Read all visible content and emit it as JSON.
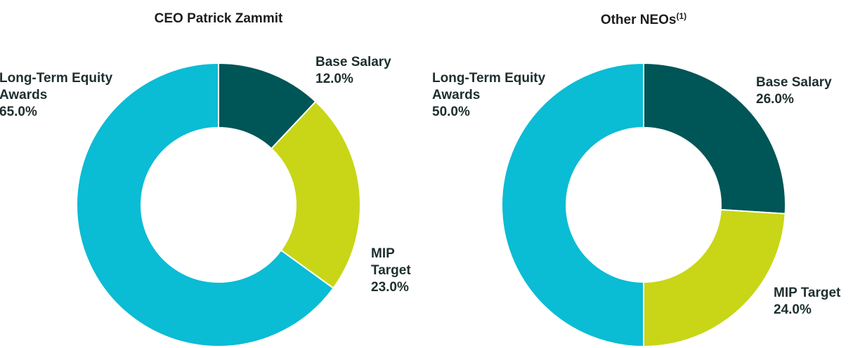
{
  "chart_data": [
    {
      "type": "donut",
      "title": "CEO Patrick Zammit",
      "categories": [
        "Base Salary",
        "MIP Target",
        "Long-Term Equity Awards"
      ],
      "values": [
        12,
        23,
        65
      ],
      "value_labels": [
        "12.0%",
        "23.0%",
        "65.0%"
      ],
      "colors": [
        "#005557",
        "#c8d617",
        "#0abcd4"
      ]
    },
    {
      "type": "donut",
      "title": "Other NEOs",
      "footnote_marker": "(1)",
      "categories": [
        "Base Salary",
        "MIP Target",
        "Long-Term Equity Awards"
      ],
      "values": [
        26,
        24,
        50
      ],
      "value_labels": [
        "26.0%",
        "24.0%",
        "50.0%"
      ],
      "colors": [
        "#005557",
        "#c8d617",
        "#0abcd4"
      ]
    }
  ]
}
